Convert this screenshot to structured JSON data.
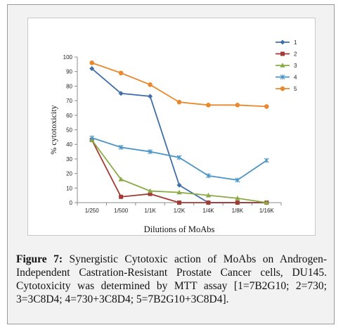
{
  "chart_data": {
    "type": "line",
    "xlabel": "Dilutions of MoAbs",
    "ylabel": "% cytotoxicity",
    "ylim": [
      0,
      100
    ],
    "yticks": [
      0,
      10,
      20,
      30,
      40,
      50,
      60,
      70,
      80,
      90,
      100
    ],
    "categories": [
      "1/250",
      "1/500",
      "1/1K",
      "1/2K",
      "1/4K",
      "1/8K",
      "1/16K"
    ],
    "grid": false,
    "legend_position": "top-right",
    "series": [
      {
        "name": "1",
        "color": "#3f6ea8",
        "marker": "diamond",
        "values": [
          92,
          75,
          73,
          12,
          0,
          0,
          0
        ]
      },
      {
        "name": "2",
        "color": "#a33a33",
        "marker": "square",
        "values": [
          43,
          4,
          6,
          0,
          0,
          0,
          0
        ]
      },
      {
        "name": "3",
        "color": "#8aaa45",
        "marker": "triangle",
        "values": [
          43,
          16,
          8,
          7,
          5,
          3,
          0
        ]
      },
      {
        "name": "4",
        "color": "#4a94c6",
        "marker": "x",
        "values": [
          44.5,
          38,
          35,
          31,
          18.5,
          15.5,
          29
        ]
      },
      {
        "name": "5",
        "color": "#e8892e",
        "marker": "circle",
        "values": [
          96,
          89,
          81,
          69,
          67,
          67,
          66
        ]
      }
    ]
  },
  "caption": {
    "lead": "Figure 7:",
    "text": " Synergistic Cytotoxic action of MoAbs on Androgen-Independent Castration-Resistant Prostate Cancer cells, DU145. Cytotoxicity was determined by MTT assay [1=7B2G10; 2=730; 3=3C8D4; 4=730+3C8D4; 5=7B2G10+3C8D4]."
  }
}
